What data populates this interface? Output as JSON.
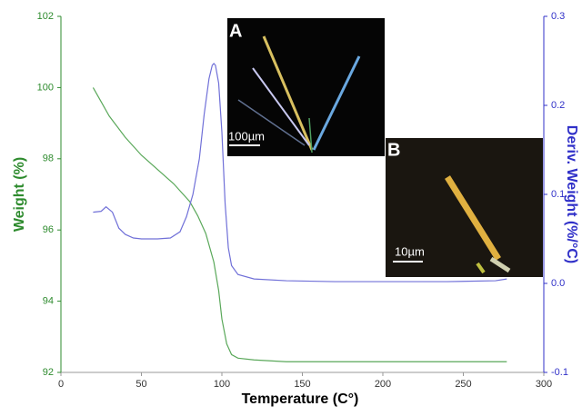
{
  "chart_data": {
    "type": "line",
    "xlabel": "Temperature (C°)",
    "ylabel": "Weight (%)",
    "y2label": "Deriv. Weight (%/°C)",
    "xlim": [
      0,
      300
    ],
    "xticks": [
      0,
      50,
      100,
      150,
      200,
      250,
      300
    ],
    "ylim": [
      92,
      102
    ],
    "yticks": [
      92,
      94,
      96,
      98,
      100,
      102
    ],
    "y2lim": [
      -0.1,
      0.3
    ],
    "y2ticks": [
      -0.1,
      {
        "value": 0,
        "label": "0.0"
      },
      0.1,
      0.2,
      0.3
    ],
    "ycolor": "#2e8b2e",
    "y2color": "#3030c8",
    "series": [
      {
        "color": "#5aa85a",
        "x": [
          20,
          25,
          30,
          40,
          50,
          60,
          70,
          80,
          85,
          90,
          95,
          98,
          100,
          103,
          106,
          110,
          120,
          140,
          160,
          200,
          240,
          277
        ],
        "values": [
          100,
          99.6,
          99.2,
          98.6,
          98.1,
          97.7,
          97.3,
          96.8,
          96.4,
          95.9,
          95.1,
          94.3,
          93.5,
          92.8,
          92.5,
          92.4,
          92.35,
          92.3,
          92.3,
          92.3,
          92.3,
          92.3
        ]
      },
      {
        "color": "#7070d8",
        "axis": "y2",
        "x": [
          20,
          25,
          28,
          32,
          36,
          40,
          45,
          50,
          60,
          68,
          74,
          78,
          82,
          86,
          89,
          92,
          94,
          95,
          96,
          98,
          100,
          102,
          104,
          106,
          110,
          120,
          140,
          170,
          200,
          240,
          270,
          277
        ],
        "values": [
          0.08,
          0.081,
          0.086,
          0.08,
          0.062,
          0.055,
          0.051,
          0.05,
          0.05,
          0.051,
          0.058,
          0.075,
          0.1,
          0.14,
          0.19,
          0.23,
          0.245,
          0.247,
          0.245,
          0.225,
          0.17,
          0.09,
          0.04,
          0.02,
          0.01,
          0.005,
          0.003,
          0.002,
          0.002,
          0.002,
          0.003,
          0.005
        ]
      }
    ],
    "annotations": [
      "A",
      "100µm",
      "B",
      "10µm"
    ]
  }
}
